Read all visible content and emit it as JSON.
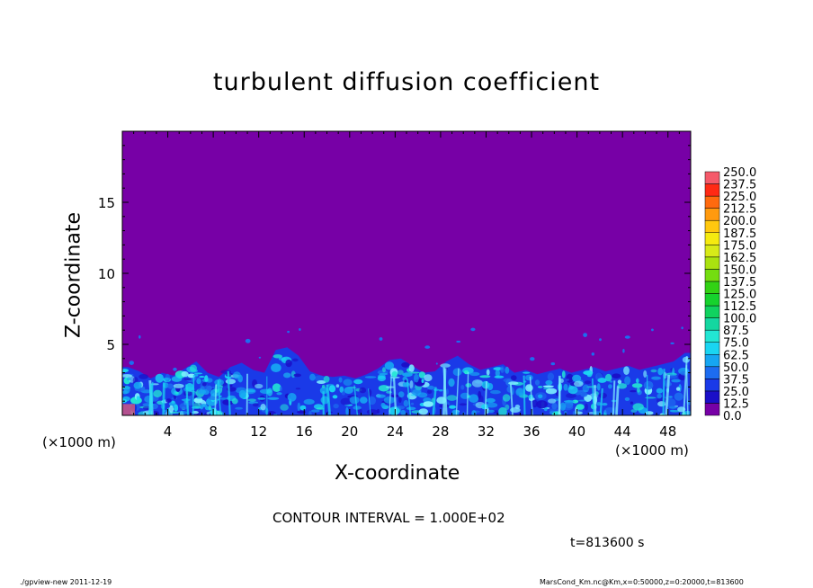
{
  "chart_data": {
    "type": "heatmap",
    "title": "turbulent diffusion coefficient",
    "xlabel": "X-coordinate",
    "ylabel": "Z-coordinate",
    "x_unit": "(×1000 m)",
    "xlim": [
      0,
      50
    ],
    "ylim": [
      0,
      20
    ],
    "xticks": [
      4,
      8,
      12,
      16,
      20,
      24,
      28,
      32,
      36,
      40,
      44,
      48
    ],
    "yticks": [
      5,
      10,
      15
    ],
    "colorbar": {
      "levels": [
        "0.0",
        "12.5",
        "25.0",
        "37.5",
        "50.0",
        "62.5",
        "75.0",
        "87.5",
        "100.0",
        "112.5",
        "125.0",
        "137.5",
        "150.0",
        "162.5",
        "175.0",
        "187.5",
        "200.0",
        "212.5",
        "225.0",
        "237.5",
        "250.0"
      ],
      "colors": [
        "#7700a6",
        "#1a0fc8",
        "#1a3ae8",
        "#1d6cf0",
        "#16a6f2",
        "#1ad5f2",
        "#22e6d4",
        "#14d7a0",
        "#10d25f",
        "#16d22d",
        "#32d214",
        "#74dd10",
        "#aae210",
        "#d8ea18",
        "#f5ea10",
        "#ffc80e",
        "#ff9a0e",
        "#ff6a0e",
        "#ff2a14",
        "#f55a6a"
      ]
    },
    "turbulent_layer_top_km": [
      3.4,
      3.1,
      2.6,
      3.0,
      2.8,
      3.3,
      3.8,
      3.0,
      2.7,
      3.4,
      3.7,
      3.2,
      3.0,
      4.6,
      4.8,
      4.2,
      3.1,
      2.8,
      2.7,
      2.8,
      2.6,
      2.9,
      3.3,
      3.9,
      4.0,
      3.5,
      3.0,
      3.1,
      3.8,
      4.2,
      3.6,
      3.2,
      3.4,
      3.6,
      3.0,
      3.2,
      2.9,
      3.1,
      3.3,
      3.0,
      3.2,
      3.4,
      3.1,
      3.3,
      3.5,
      3.2,
      3.4,
      3.6,
      3.8,
      4.4
    ],
    "contour_interval": "CONTOUR INTERVAL = 1.000E+02",
    "time_label": "t=813600 s"
  },
  "footer": {
    "left": "./gpview-new   2011-12-19",
    "right": "MarsCond_Km.nc@Km,x=0:50000,z=0:20000,t=813600"
  }
}
